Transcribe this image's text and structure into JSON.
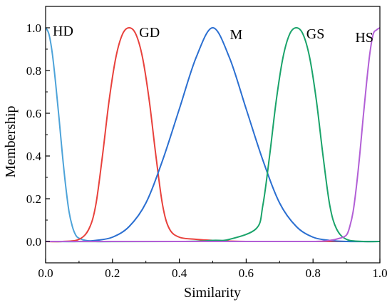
{
  "chart_data": {
    "type": "line",
    "title": "",
    "xlabel": "Similarity",
    "ylabel": "Membership",
    "xlim": [
      0,
      1
    ],
    "ylim": [
      -0.1,
      1.1
    ],
    "xticks": [
      0.0,
      0.2,
      0.4,
      0.6,
      0.8,
      1.0
    ],
    "xtick_labels": [
      "0.0",
      "0.2",
      "0.4",
      "0.6",
      "0.8",
      "1.0"
    ],
    "yticks": [
      0.0,
      0.2,
      0.4,
      0.6,
      0.8,
      1.0
    ],
    "ytick_labels": [
      "0.0",
      "0.2",
      "0.4",
      "0.6",
      "0.8",
      "1.0"
    ],
    "grid": false,
    "legend": "none",
    "series": [
      {
        "name": "HD",
        "color": "#4da3d9",
        "x": [
          0.0,
          0.01,
          0.02,
          0.03,
          0.04,
          0.05,
          0.06,
          0.07,
          0.08,
          0.09,
          0.1,
          0.12,
          0.15,
          0.2,
          0.4,
          0.6,
          0.8,
          1.0
        ],
        "y": [
          1.0,
          0.97,
          0.88,
          0.74,
          0.58,
          0.41,
          0.26,
          0.14,
          0.07,
          0.03,
          0.015,
          0.005,
          0.0,
          0.0,
          0.0,
          0.0,
          0.0,
          0.0
        ]
      },
      {
        "name": "GD",
        "color": "#e8413c",
        "x": [
          0.0,
          0.05,
          0.1,
          0.13,
          0.15,
          0.17,
          0.19,
          0.21,
          0.23,
          0.25,
          0.27,
          0.29,
          0.31,
          0.33,
          0.35,
          0.37,
          0.4,
          0.45,
          0.5,
          0.6,
          0.8,
          1.0
        ],
        "y": [
          0.0,
          0.0,
          0.01,
          0.06,
          0.17,
          0.4,
          0.66,
          0.86,
          0.97,
          1.0,
          0.97,
          0.86,
          0.66,
          0.4,
          0.17,
          0.06,
          0.02,
          0.01,
          0.005,
          0.0,
          0.0,
          0.0
        ]
      },
      {
        "name": "M",
        "color": "#2b6fd1",
        "x": [
          0.0,
          0.1,
          0.15,
          0.2,
          0.25,
          0.3,
          0.35,
          0.4,
          0.45,
          0.5,
          0.55,
          0.6,
          0.65,
          0.7,
          0.75,
          0.8,
          0.85,
          0.9,
          1.0
        ],
        "y": [
          0.0,
          0.0,
          0.005,
          0.02,
          0.07,
          0.18,
          0.38,
          0.62,
          0.86,
          1.0,
          0.86,
          0.62,
          0.38,
          0.18,
          0.07,
          0.02,
          0.005,
          0.0,
          0.0
        ]
      },
      {
        "name": "GS",
        "color": "#1aa36a",
        "x": [
          0.0,
          0.4,
          0.5,
          0.55,
          0.63,
          0.65,
          0.67,
          0.69,
          0.71,
          0.73,
          0.75,
          0.77,
          0.79,
          0.81,
          0.83,
          0.85,
          0.87,
          0.9,
          0.95,
          1.0
        ],
        "y": [
          0.0,
          0.0,
          0.005,
          0.01,
          0.06,
          0.17,
          0.4,
          0.66,
          0.86,
          0.97,
          1.0,
          0.97,
          0.86,
          0.66,
          0.4,
          0.17,
          0.06,
          0.01,
          0.0,
          0.0
        ]
      },
      {
        "name": "HS",
        "color": "#b25fd6",
        "x": [
          0.0,
          0.2,
          0.4,
          0.6,
          0.8,
          0.85,
          0.88,
          0.9,
          0.91,
          0.92,
          0.93,
          0.94,
          0.95,
          0.96,
          0.97,
          0.98,
          0.99,
          1.0
        ],
        "y": [
          0.0,
          0.0,
          0.0,
          0.0,
          0.0,
          0.005,
          0.015,
          0.03,
          0.07,
          0.14,
          0.26,
          0.41,
          0.58,
          0.74,
          0.88,
          0.97,
          0.99,
          1.0
        ]
      }
    ]
  }
}
